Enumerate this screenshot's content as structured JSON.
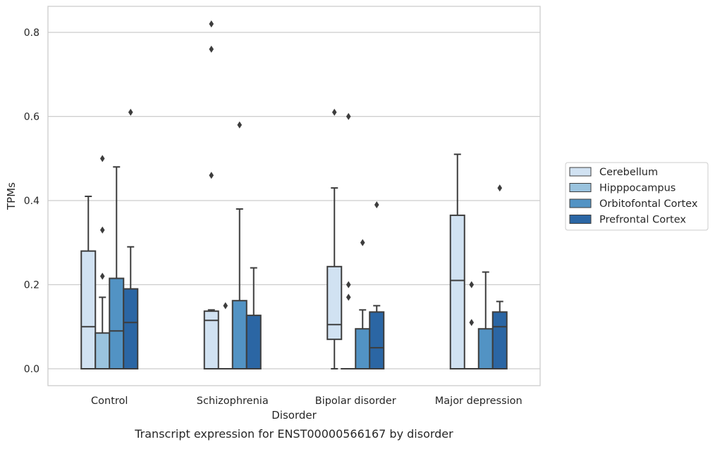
{
  "chart_data": {
    "type": "box",
    "title": "",
    "caption": "Transcript expression for ENST00000566167 by disorder",
    "xlabel": "Disorder",
    "ylabel": "TPMs",
    "ylim": [
      -0.04,
      0.86
    ],
    "yticks": [
      0.0,
      0.2,
      0.4,
      0.6,
      0.8
    ],
    "ytick_labels": [
      "0.0",
      "0.2",
      "0.4",
      "0.6",
      "0.8"
    ],
    "grid": "horizontal",
    "legend_position": "right",
    "categories": [
      "Control",
      "Schizophrenia",
      "Bipolar disorder",
      "Major depression"
    ],
    "series": [
      {
        "name": "Cerebellum",
        "color": "#d1e2f2",
        "boxes": [
          {
            "whislo": 0.0,
            "q1": 0.0,
            "med": 0.1,
            "q3": 0.28,
            "whishi": 0.41,
            "fliers": []
          },
          {
            "whislo": 0.0,
            "q1": 0.0,
            "med": 0.115,
            "q3": 0.137,
            "whishi": 0.14,
            "fliers": [
              0.46,
              0.76,
              0.82
            ]
          },
          {
            "whislo": 0.0,
            "q1": 0.07,
            "med": 0.105,
            "q3": 0.243,
            "whishi": 0.43,
            "fliers": [
              0.61
            ]
          },
          {
            "whislo": 0.0,
            "q1": 0.0,
            "med": 0.21,
            "q3": 0.365,
            "whishi": 0.51,
            "fliers": []
          }
        ]
      },
      {
        "name": "Hipppocampus",
        "color": "#9ac3de",
        "boxes": [
          {
            "whislo": 0.0,
            "q1": 0.0,
            "med": 0.0,
            "q3": 0.085,
            "whishi": 0.17,
            "fliers": [
              0.22,
              0.33,
              0.5
            ]
          },
          {
            "whislo": 0.0,
            "q1": 0.0,
            "med": 0.0,
            "q3": 0.0,
            "whishi": 0.0,
            "fliers": [
              0.15
            ]
          },
          {
            "whislo": 0.0,
            "q1": 0.0,
            "med": 0.0,
            "q3": 0.0,
            "whishi": 0.0,
            "fliers": [
              0.17,
              0.2,
              0.6
            ]
          },
          {
            "whislo": 0.0,
            "q1": 0.0,
            "med": 0.0,
            "q3": 0.0,
            "whishi": 0.0,
            "fliers": [
              0.11,
              0.2
            ]
          }
        ]
      },
      {
        "name": "Orbitofontal Cortex",
        "color": "#5293c4",
        "boxes": [
          {
            "whislo": 0.0,
            "q1": 0.0,
            "med": 0.09,
            "q3": 0.215,
            "whishi": 0.48,
            "fliers": []
          },
          {
            "whislo": 0.0,
            "q1": 0.0,
            "med": 0.0,
            "q3": 0.162,
            "whishi": 0.38,
            "fliers": [
              0.58
            ]
          },
          {
            "whislo": 0.0,
            "q1": 0.0,
            "med": 0.0,
            "q3": 0.095,
            "whishi": 0.14,
            "fliers": [
              0.3
            ]
          },
          {
            "whislo": 0.0,
            "q1": 0.0,
            "med": 0.0,
            "q3": 0.095,
            "whishi": 0.23,
            "fliers": []
          }
        ]
      },
      {
        "name": "Prefrontal Cortex",
        "color": "#2b66a4",
        "boxes": [
          {
            "whislo": 0.0,
            "q1": 0.0,
            "med": 0.11,
            "q3": 0.19,
            "whishi": 0.29,
            "fliers": [
              0.61
            ]
          },
          {
            "whislo": 0.0,
            "q1": 0.0,
            "med": 0.0,
            "q3": 0.127,
            "whishi": 0.24,
            "fliers": []
          },
          {
            "whislo": 0.0,
            "q1": 0.0,
            "med": 0.05,
            "q3": 0.135,
            "whishi": 0.15,
            "fliers": [
              0.39
            ]
          },
          {
            "whislo": 0.0,
            "q1": 0.0,
            "med": 0.1,
            "q3": 0.135,
            "whishi": 0.16,
            "fliers": [
              0.43
            ]
          }
        ]
      }
    ]
  }
}
